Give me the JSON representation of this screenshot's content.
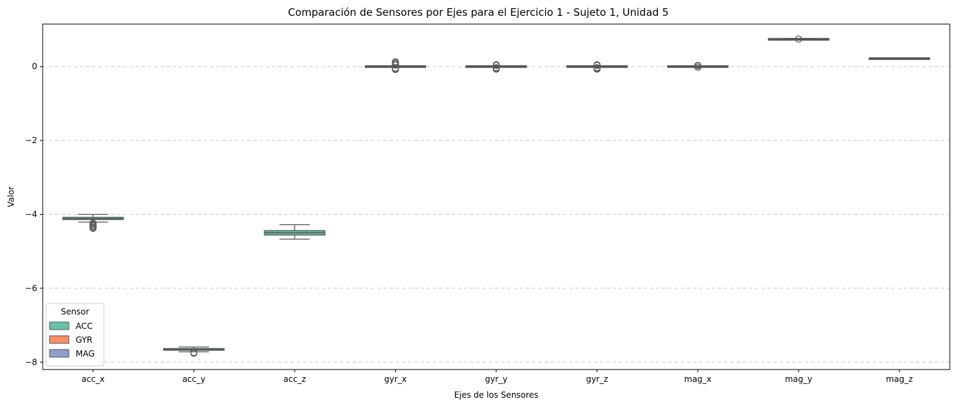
{
  "chart_data": {
    "type": "box",
    "title": "Comparación de Sensores por Ejes para el Ejercicio 1 - Sujeto 1, Unidad 5",
    "xlabel": "Ejes de los Sensores",
    "ylabel": "Valor",
    "ylim": [
      -8.2,
      1.15
    ],
    "yticks": [
      {
        "value": 0,
        "label": "0"
      },
      {
        "value": -2,
        "label": "−2"
      },
      {
        "value": -4,
        "label": "−4"
      },
      {
        "value": -6,
        "label": "−6"
      },
      {
        "value": -8,
        "label": "−8"
      }
    ],
    "grid": "y-dashed",
    "legend": {
      "title": "Sensor",
      "position": "lower-left",
      "entries": [
        {
          "name": "ACC",
          "color": "#66c2a5"
        },
        {
          "name": "GYR",
          "color": "#fc8d62"
        },
        {
          "name": "MAG",
          "color": "#8da0cb"
        }
      ]
    },
    "categories": [
      "acc_x",
      "acc_y",
      "acc_z",
      "gyr_x",
      "gyr_y",
      "gyr_z",
      "mag_x",
      "mag_y",
      "mag_z"
    ],
    "boxes": [
      {
        "category": "acc_x",
        "sensor": "ACC",
        "whisker_low": -4.21,
        "q1": -4.14,
        "median": -4.12,
        "q3": -4.08,
        "whisker_high": -4.0,
        "outliers": [
          -4.24,
          -4.27,
          -4.3,
          -4.33,
          -4.36,
          -4.38
        ]
      },
      {
        "category": "acc_y",
        "sensor": "ACC",
        "whisker_low": -7.72,
        "q1": -7.67,
        "median": -7.66,
        "q3": -7.64,
        "whisker_high": -7.59,
        "outliers": [
          -7.74,
          -7.76
        ]
      },
      {
        "category": "acc_z",
        "sensor": "ACC",
        "whisker_low": -4.67,
        "q1": -4.56,
        "median": -4.5,
        "q3": -4.44,
        "whisker_high": -4.28,
        "outliers": []
      },
      {
        "category": "gyr_x",
        "sensor": "GYR",
        "whisker_low": -0.02,
        "q1": -0.01,
        "median": 0.0,
        "q3": 0.01,
        "whisker_high": 0.02,
        "outliers": [
          0.04,
          0.07,
          0.1,
          0.13,
          -0.04,
          -0.06,
          -0.08
        ]
      },
      {
        "category": "gyr_y",
        "sensor": "GYR",
        "whisker_low": -0.01,
        "q1": -0.005,
        "median": 0.0,
        "q3": 0.005,
        "whisker_high": 0.01,
        "outliers": [
          0.03,
          0.05,
          -0.03,
          -0.05,
          -0.07
        ]
      },
      {
        "category": "gyr_z",
        "sensor": "GYR",
        "whisker_low": -0.01,
        "q1": -0.005,
        "median": 0.0,
        "q3": 0.005,
        "whisker_high": 0.01,
        "outliers": [
          0.03,
          0.05,
          -0.03,
          -0.05,
          -0.07
        ]
      },
      {
        "category": "mag_x",
        "sensor": "MAG",
        "whisker_low": -0.01,
        "q1": -0.005,
        "median": 0.0,
        "q3": 0.005,
        "whisker_high": 0.01,
        "outliers": [
          0.02,
          0.03,
          -0.02
        ]
      },
      {
        "category": "mag_y",
        "sensor": "MAG",
        "whisker_low": 0.72,
        "q1": 0.73,
        "median": 0.74,
        "q3": 0.745,
        "whisker_high": 0.76,
        "outliers": [
          0.745
        ]
      },
      {
        "category": "mag_z",
        "sensor": "MAG",
        "whisker_low": 0.2,
        "q1": 0.205,
        "median": 0.215,
        "q3": 0.225,
        "whisker_high": 0.235,
        "outliers": []
      }
    ]
  }
}
